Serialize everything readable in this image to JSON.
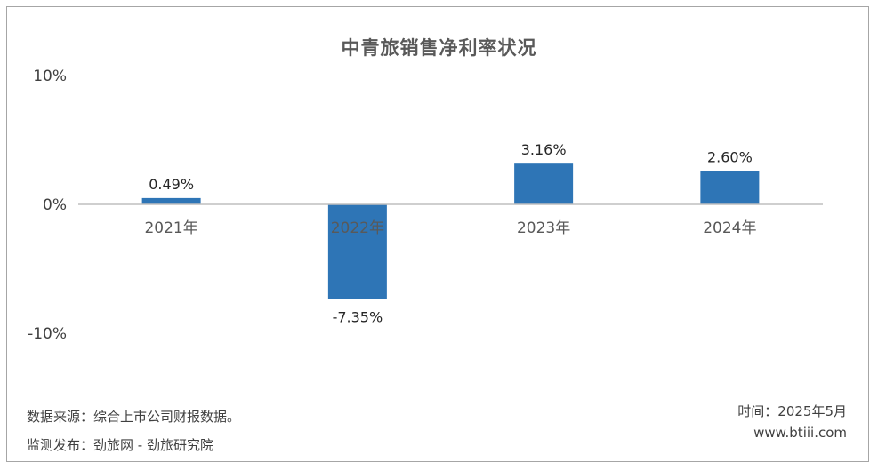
{
  "chart_data": {
    "type": "bar",
    "title": "中青旅销售净利率状况",
    "categories": [
      "2021年",
      "2022年",
      "2023年",
      "2024年"
    ],
    "values": [
      0.49,
      -7.35,
      3.16,
      2.6
    ],
    "data_labels": [
      "0.49%",
      "-7.35%",
      "3.16%",
      "2.60%"
    ],
    "yticks": [
      "10%",
      "0%",
      "-10%"
    ],
    "ytick_values": [
      10,
      0,
      -10
    ],
    "ylim": [
      -10,
      10
    ],
    "xlabel": "",
    "ylabel": "",
    "grid": false,
    "legend": "none",
    "bar_color": "#2e75b6"
  },
  "footer": {
    "source": "数据来源：综合上市公司财报数据。",
    "publisher": "监测发布：劲旅网 - 劲旅研究院",
    "time": "时间：2025年5月",
    "website": "www.btiii.com"
  }
}
